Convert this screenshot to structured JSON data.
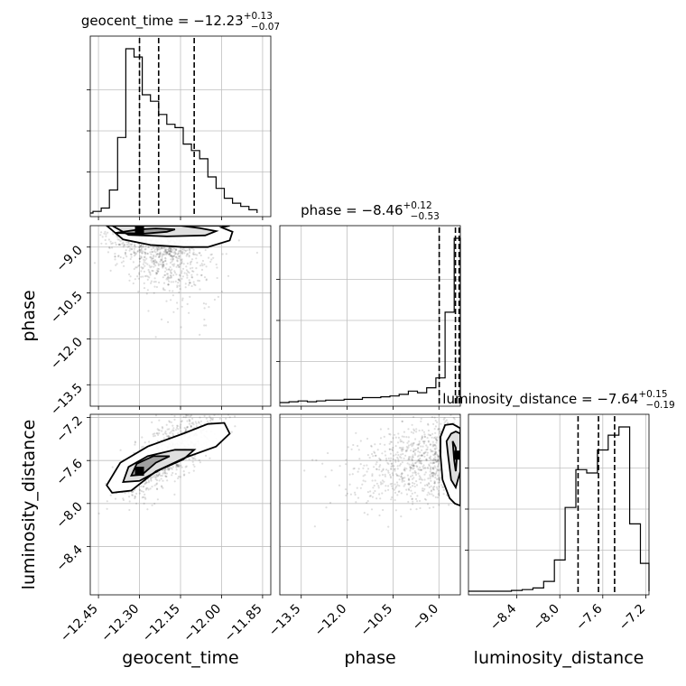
{
  "chart_data": [
    {
      "type": "histogram",
      "panel": "geocent_time",
      "title": {
        "label": "geocent_time",
        "value": "−12.23",
        "sup": "+0.13",
        "sub": "−0.07"
      },
      "xlim": [
        -12.48,
        -11.82
      ],
      "quantiles": [
        -12.3,
        -12.23,
        -12.1
      ],
      "bin_edges": [
        -12.47,
        -12.44,
        -12.41,
        -12.38,
        -12.35,
        -12.32,
        -12.29,
        -12.26,
        -12.23,
        -12.2,
        -12.17,
        -12.14,
        -12.11,
        -12.08,
        -12.05,
        -12.02,
        -11.99,
        -11.96,
        -11.93,
        -11.9,
        -11.87
      ],
      "counts": [
        0.01,
        0.03,
        0.14,
        0.46,
        1.0,
        0.95,
        0.72,
        0.68,
        0.6,
        0.54,
        0.52,
        0.42,
        0.38,
        0.33,
        0.22,
        0.15,
        0.09,
        0.06,
        0.04,
        0.02
      ]
    },
    {
      "type": "histogram",
      "panel": "phase",
      "title": {
        "label": "phase",
        "value": "−8.46",
        "sup": "+0.12",
        "sub": "−0.53"
      },
      "xlim": [
        -14.2,
        -8.3
      ],
      "quantiles": [
        -8.99,
        -8.46,
        -8.34
      ],
      "bin_edges": [
        -13.9,
        -13.6,
        -13.3,
        -13.0,
        -12.7,
        -12.4,
        -12.1,
        -11.8,
        -11.5,
        -11.2,
        -10.9,
        -10.6,
        -10.3,
        -10.0,
        -9.7,
        -9.4,
        -9.1,
        -8.8,
        -8.5,
        -8.3
      ],
      "counts": [
        0.005,
        0.01,
        0.005,
        0.01,
        0.015,
        0.015,
        0.02,
        0.02,
        0.03,
        0.03,
        0.035,
        0.04,
        0.05,
        0.07,
        0.06,
        0.09,
        0.15,
        0.55,
        1.0
      ]
    },
    {
      "type": "histogram",
      "panel": "luminosity_distance",
      "title": {
        "label": "luminosity_distance",
        "value": "−7.64",
        "sup": "+0.15",
        "sub": "−0.19"
      },
      "xlim": [
        -8.85,
        -7.17
      ],
      "quantiles": [
        -7.83,
        -7.64,
        -7.49
      ],
      "bin_edges": [
        -8.55,
        -8.45,
        -8.35,
        -8.25,
        -8.15,
        -8.05,
        -7.95,
        -7.85,
        -7.75,
        -7.65,
        -7.55,
        -7.45,
        -7.35,
        -7.25,
        -7.17
      ],
      "counts": [
        0.0,
        0.005,
        0.01,
        0.02,
        0.06,
        0.19,
        0.51,
        0.74,
        0.72,
        0.86,
        0.95,
        1.0,
        0.41,
        0.17
      ]
    },
    {
      "type": "scatter_contour",
      "x": "geocent_time",
      "y": "phase",
      "xlim": [
        -12.48,
        -11.82
      ],
      "ylim": [
        -14.2,
        -8.3
      ],
      "density_peak": [
        -12.3,
        -8.46
      ],
      "contours": [
        [
          [
            -12.39,
            -8.54
          ],
          [
            -12.3,
            -8.42
          ],
          [
            -12.24,
            -8.39
          ],
          [
            -12.17,
            -8.42
          ],
          [
            -12.2,
            -8.5
          ],
          [
            -12.28,
            -8.56
          ]
        ],
        [
          [
            -12.4,
            -8.3
          ],
          [
            -12.34,
            -8.6
          ],
          [
            -12.2,
            -8.65
          ],
          [
            -12.06,
            -8.62
          ],
          [
            -12.02,
            -8.48
          ],
          [
            -12.08,
            -8.38
          ],
          [
            -12.15,
            -8.3
          ]
        ],
        [
          [
            -12.42,
            -8.3
          ],
          [
            -12.36,
            -8.75
          ],
          [
            -12.26,
            -8.93
          ],
          [
            -12.14,
            -9.0
          ],
          [
            -12.05,
            -9.0
          ],
          [
            -11.97,
            -8.78
          ],
          [
            -11.96,
            -8.5
          ],
          [
            -12.0,
            -8.36
          ],
          [
            -11.97,
            -8.3
          ]
        ]
      ]
    },
    {
      "type": "scatter_contour",
      "x": "geocent_time",
      "y": "luminosity_distance",
      "xlim": [
        -12.48,
        -11.82
      ],
      "ylim": [
        -8.85,
        -7.17
      ],
      "density_peak": [
        -12.3,
        -7.7
      ],
      "contours": [
        [
          [
            -12.33,
            -7.74
          ],
          [
            -12.31,
            -7.63
          ],
          [
            -12.25,
            -7.56
          ],
          [
            -12.19,
            -7.56
          ],
          [
            -12.24,
            -7.62
          ],
          [
            -12.29,
            -7.73
          ]
        ],
        [
          [
            -12.36,
            -7.8
          ],
          [
            -12.34,
            -7.66
          ],
          [
            -12.27,
            -7.56
          ],
          [
            -12.17,
            -7.5
          ],
          [
            -12.1,
            -7.5
          ],
          [
            -12.14,
            -7.59
          ],
          [
            -12.22,
            -7.68
          ],
          [
            -12.3,
            -7.79
          ]
        ],
        [
          [
            -12.42,
            -7.83
          ],
          [
            -12.37,
            -7.62
          ],
          [
            -12.27,
            -7.47
          ],
          [
            -12.14,
            -7.35
          ],
          [
            -12.05,
            -7.26
          ],
          [
            -11.99,
            -7.25
          ],
          [
            -11.97,
            -7.35
          ],
          [
            -12.02,
            -7.47
          ],
          [
            -12.13,
            -7.57
          ],
          [
            -12.24,
            -7.7
          ],
          [
            -12.33,
            -7.88
          ],
          [
            -12.4,
            -7.9
          ]
        ]
      ]
    },
    {
      "type": "scatter_contour",
      "x": "phase",
      "y": "luminosity_distance",
      "xlim": [
        -14.2,
        -8.3
      ],
      "ylim": [
        -8.85,
        -7.17
      ],
      "density_peak": [
        -8.35,
        -7.55
      ],
      "contours": [
        [
          [
            -8.55,
            -7.42
          ],
          [
            -8.45,
            -7.48
          ],
          [
            -8.42,
            -7.6
          ],
          [
            -8.45,
            -7.7
          ],
          [
            -8.5,
            -7.6
          ]
        ],
        [
          [
            -8.75,
            -7.42
          ],
          [
            -8.6,
            -7.35
          ],
          [
            -8.45,
            -7.33
          ],
          [
            -8.3,
            -7.35
          ],
          [
            -8.3,
            -7.7
          ],
          [
            -8.45,
            -7.85
          ],
          [
            -8.6,
            -7.78
          ],
          [
            -8.7,
            -7.55
          ]
        ],
        [
          [
            -8.95,
            -7.38
          ],
          [
            -8.8,
            -7.27
          ],
          [
            -8.55,
            -7.26
          ],
          [
            -8.3,
            -7.3
          ],
          [
            -8.3,
            -8.02
          ],
          [
            -8.48,
            -8.0
          ],
          [
            -8.65,
            -7.95
          ],
          [
            -8.88,
            -7.78
          ],
          [
            -8.95,
            -7.55
          ]
        ]
      ]
    }
  ],
  "axes": {
    "geocent_time": {
      "label": "geocent_time",
      "ticks": [
        "−12.45",
        "−12.30",
        "−12.15",
        "−12.00",
        "−11.85"
      ],
      "tick_values": [
        -12.45,
        -12.3,
        -12.15,
        -12.0,
        -11.85
      ]
    },
    "phase": {
      "label": "phase",
      "ticks": [
        "−13.5",
        "−12.0",
        "−10.5",
        "−9.0"
      ],
      "tick_values": [
        -13.5,
        -12.0,
        -10.5,
        -9.0
      ]
    },
    "luminosity_distance": {
      "label": "luminosity_distance",
      "ticks": [
        "−8.4",
        "−8.0",
        "−7.6",
        "−7.2"
      ],
      "tick_values": [
        -8.4,
        -8.0,
        -7.6,
        -7.2
      ]
    }
  }
}
